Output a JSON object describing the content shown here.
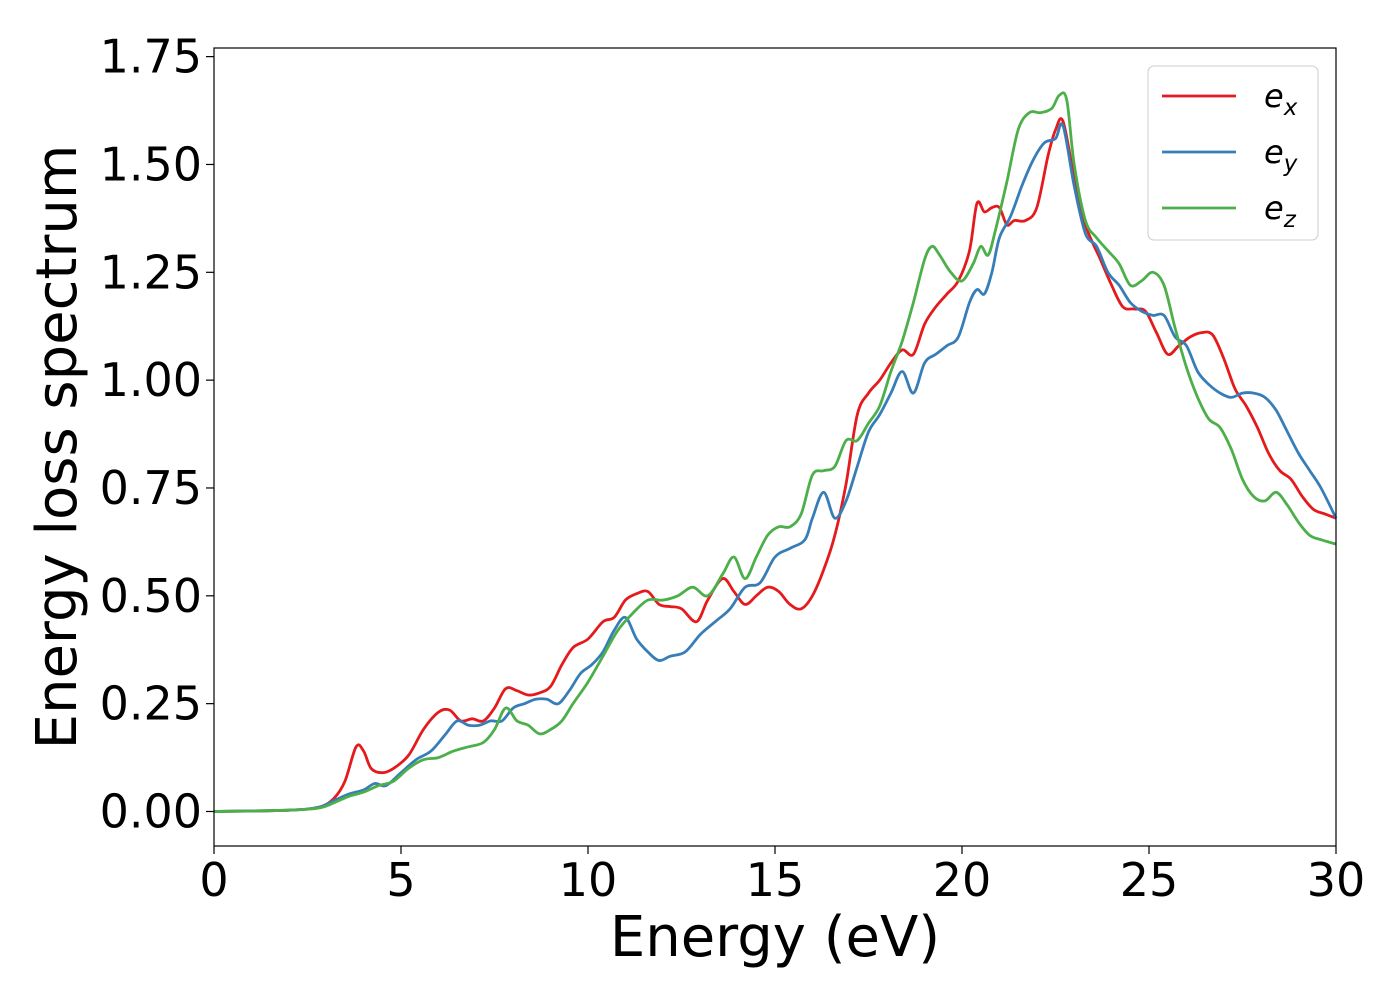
{
  "chart_data": {
    "type": "line",
    "title": "",
    "xlabel": "Energy (eV)",
    "ylabel": "Energy loss spectrum",
    "xlim": [
      0,
      30
    ],
    "ylim": [
      -0.08,
      1.77
    ],
    "xticks": [
      0,
      5,
      10,
      15,
      20,
      25,
      30
    ],
    "xtick_labels": [
      "0",
      "5",
      "10",
      "15",
      "20",
      "25",
      "30"
    ],
    "yticks": [
      0,
      0.25,
      0.5,
      0.75,
      1.0,
      1.25,
      1.5,
      1.75
    ],
    "ytick_labels": [
      "0.00",
      "0.25",
      "0.50",
      "0.75",
      "1.00",
      "1.25",
      "1.50",
      "1.75"
    ],
    "grid": false,
    "legend_position": "top-right",
    "series": [
      {
        "name": "e_x",
        "label_base": "e",
        "label_sub": "x",
        "color": "#e41a1c",
        "x": [
          0,
          2,
          2.8,
          3.2,
          3.5,
          3.8,
          4.0,
          4.2,
          4.5,
          4.8,
          5.2,
          5.6,
          6.0,
          6.3,
          6.6,
          6.9,
          7.2,
          7.5,
          7.8,
          8.1,
          8.4,
          8.7,
          9.0,
          9.3,
          9.6,
          10.0,
          10.4,
          10.7,
          11.0,
          11.3,
          11.6,
          11.9,
          12.2,
          12.5,
          12.9,
          13.2,
          13.6,
          13.9,
          14.2,
          14.5,
          14.8,
          15.1,
          15.4,
          15.7,
          16.0,
          16.3,
          16.6,
          16.9,
          17.2,
          17.5,
          17.8,
          18.1,
          18.4,
          18.7,
          19.0,
          19.3,
          19.6,
          19.9,
          20.2,
          20.4,
          20.6,
          20.8,
          21.0,
          21.2,
          21.4,
          21.7,
          22.0,
          22.3,
          22.5,
          22.7,
          23.0,
          23.3,
          23.7,
          24.0,
          24.3,
          24.6,
          24.9,
          25.2,
          25.5,
          25.8,
          26.1,
          26.4,
          26.7,
          27.0,
          27.3,
          27.6,
          27.9,
          28.2,
          28.5,
          28.8,
          29.1,
          29.4,
          29.7,
          30.0
        ],
        "y": [
          0,
          0.003,
          0.01,
          0.03,
          0.07,
          0.15,
          0.14,
          0.1,
          0.09,
          0.1,
          0.13,
          0.19,
          0.23,
          0.235,
          0.21,
          0.215,
          0.21,
          0.24,
          0.285,
          0.28,
          0.27,
          0.275,
          0.29,
          0.34,
          0.38,
          0.4,
          0.44,
          0.45,
          0.49,
          0.505,
          0.51,
          0.48,
          0.475,
          0.47,
          0.44,
          0.49,
          0.54,
          0.51,
          0.48,
          0.5,
          0.52,
          0.51,
          0.48,
          0.47,
          0.5,
          0.56,
          0.64,
          0.76,
          0.92,
          0.97,
          1.0,
          1.04,
          1.07,
          1.06,
          1.13,
          1.17,
          1.2,
          1.23,
          1.3,
          1.41,
          1.39,
          1.4,
          1.4,
          1.36,
          1.37,
          1.37,
          1.4,
          1.52,
          1.58,
          1.6,
          1.47,
          1.36,
          1.28,
          1.22,
          1.17,
          1.165,
          1.16,
          1.11,
          1.06,
          1.08,
          1.1,
          1.11,
          1.105,
          1.05,
          0.98,
          0.94,
          0.89,
          0.83,
          0.79,
          0.77,
          0.73,
          0.7,
          0.69,
          0.68
        ]
      },
      {
        "name": "e_y",
        "label_base": "e",
        "label_sub": "y",
        "color": "#377eb8",
        "x": [
          0,
          2,
          2.8,
          3.2,
          3.6,
          4.0,
          4.3,
          4.6,
          5.0,
          5.4,
          5.8,
          6.2,
          6.5,
          6.8,
          7.1,
          7.4,
          7.7,
          8.0,
          8.3,
          8.6,
          8.9,
          9.2,
          9.5,
          9.8,
          10.1,
          10.4,
          10.7,
          11.0,
          11.3,
          11.6,
          11.9,
          12.2,
          12.6,
          13.0,
          13.4,
          13.8,
          14.2,
          14.6,
          15.0,
          15.4,
          15.8,
          16.0,
          16.3,
          16.6,
          16.9,
          17.2,
          17.5,
          17.8,
          18.1,
          18.4,
          18.7,
          19.0,
          19.3,
          19.6,
          19.9,
          20.2,
          20.4,
          20.6,
          20.8,
          21.0,
          21.3,
          21.6,
          21.9,
          22.2,
          22.5,
          22.7,
          23.0,
          23.3,
          23.6,
          23.9,
          24.2,
          24.5,
          24.8,
          25.1,
          25.4,
          25.7,
          26.0,
          26.3,
          26.6,
          26.9,
          27.2,
          27.5,
          27.8,
          28.1,
          28.4,
          28.7,
          29.0,
          29.3,
          29.6,
          30.0
        ],
        "y": [
          0,
          0.003,
          0.01,
          0.025,
          0.04,
          0.05,
          0.065,
          0.06,
          0.09,
          0.12,
          0.14,
          0.18,
          0.21,
          0.2,
          0.2,
          0.21,
          0.21,
          0.24,
          0.25,
          0.26,
          0.26,
          0.25,
          0.28,
          0.32,
          0.34,
          0.37,
          0.42,
          0.45,
          0.4,
          0.37,
          0.35,
          0.36,
          0.37,
          0.41,
          0.44,
          0.47,
          0.52,
          0.53,
          0.59,
          0.61,
          0.63,
          0.68,
          0.74,
          0.68,
          0.72,
          0.8,
          0.88,
          0.92,
          0.97,
          1.02,
          0.97,
          1.04,
          1.06,
          1.08,
          1.1,
          1.18,
          1.21,
          1.2,
          1.25,
          1.33,
          1.38,
          1.45,
          1.51,
          1.55,
          1.56,
          1.59,
          1.45,
          1.34,
          1.31,
          1.25,
          1.22,
          1.18,
          1.16,
          1.15,
          1.15,
          1.1,
          1.08,
          1.02,
          0.99,
          0.97,
          0.96,
          0.97,
          0.97,
          0.96,
          0.93,
          0.88,
          0.83,
          0.79,
          0.75,
          0.68
        ]
      },
      {
        "name": "e_z",
        "label_base": "e",
        "label_sub": "z",
        "color": "#4daf4a",
        "x": [
          0,
          2,
          2.8,
          3.2,
          3.6,
          4.0,
          4.4,
          4.8,
          5.2,
          5.6,
          6.0,
          6.4,
          6.8,
          7.2,
          7.5,
          7.8,
          8.1,
          8.4,
          8.7,
          9.0,
          9.3,
          9.6,
          10.0,
          10.4,
          10.8,
          11.2,
          11.6,
          12.0,
          12.4,
          12.8,
          13.2,
          13.6,
          13.9,
          14.2,
          14.5,
          14.8,
          15.1,
          15.4,
          15.7,
          16.0,
          16.3,
          16.6,
          16.9,
          17.2,
          17.5,
          17.8,
          18.1,
          18.4,
          18.7,
          19.0,
          19.2,
          19.4,
          19.7,
          20.0,
          20.3,
          20.5,
          20.7,
          20.9,
          21.2,
          21.5,
          21.8,
          22.1,
          22.4,
          22.6,
          22.8,
          23.0,
          23.3,
          23.6,
          23.9,
          24.2,
          24.5,
          24.8,
          25.1,
          25.4,
          25.7,
          26.0,
          26.3,
          26.6,
          26.9,
          27.2,
          27.5,
          27.8,
          28.1,
          28.4,
          28.7,
          29.0,
          29.3,
          29.6,
          30.0
        ],
        "y": [
          0,
          0.003,
          0.008,
          0.02,
          0.035,
          0.045,
          0.06,
          0.07,
          0.1,
          0.12,
          0.125,
          0.14,
          0.15,
          0.16,
          0.19,
          0.24,
          0.21,
          0.2,
          0.18,
          0.19,
          0.21,
          0.25,
          0.3,
          0.36,
          0.42,
          0.46,
          0.49,
          0.49,
          0.5,
          0.52,
          0.5,
          0.55,
          0.59,
          0.54,
          0.59,
          0.64,
          0.66,
          0.66,
          0.69,
          0.78,
          0.79,
          0.8,
          0.86,
          0.86,
          0.9,
          0.94,
          1.02,
          1.09,
          1.18,
          1.28,
          1.31,
          1.29,
          1.25,
          1.23,
          1.27,
          1.31,
          1.29,
          1.35,
          1.46,
          1.58,
          1.62,
          1.62,
          1.63,
          1.66,
          1.65,
          1.5,
          1.37,
          1.33,
          1.3,
          1.27,
          1.22,
          1.23,
          1.25,
          1.22,
          1.12,
          1.03,
          0.96,
          0.91,
          0.89,
          0.84,
          0.77,
          0.73,
          0.72,
          0.74,
          0.71,
          0.67,
          0.64,
          0.63,
          0.62
        ]
      }
    ]
  }
}
